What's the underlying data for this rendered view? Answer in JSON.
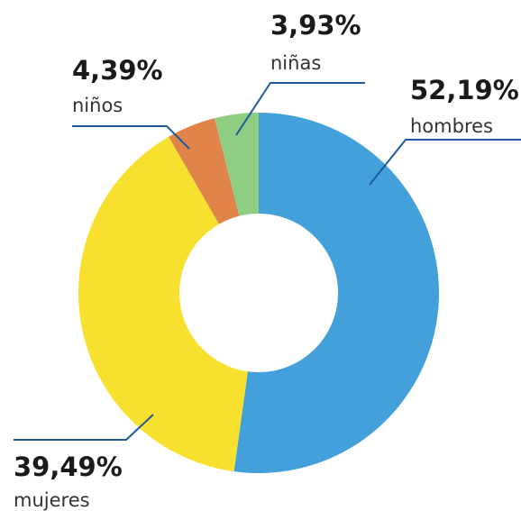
{
  "chart_data": {
    "type": "donut",
    "categories": [
      "hombres",
      "mujeres",
      "niños",
      "niñas"
    ],
    "values": [
      52.19,
      39.49,
      4.39,
      3.93
    ],
    "value_labels": [
      "52,19%",
      "39,49%",
      "4,39%",
      "3,93%"
    ],
    "colors": [
      "#43a0da",
      "#f7e12e",
      "#e0844a",
      "#8fce82"
    ]
  }
}
